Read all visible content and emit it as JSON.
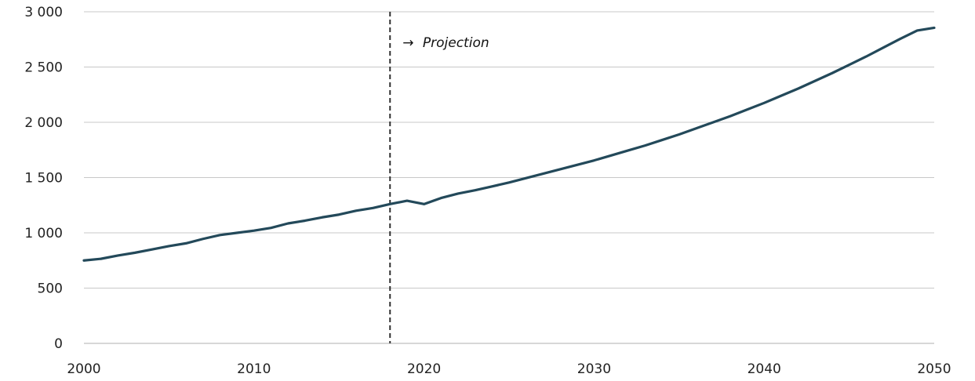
{
  "chart_data": {
    "type": "line",
    "title": "",
    "xlabel": "",
    "ylabel": "",
    "xlim": [
      2000,
      2050
    ],
    "ylim": [
      0,
      3000
    ],
    "x_ticks": [
      2000,
      2010,
      2020,
      2030,
      2040,
      2050
    ],
    "x_tick_labels": [
      "2000",
      "2010",
      "2020",
      "2030",
      "2040",
      "2050"
    ],
    "y_ticks": [
      0,
      500,
      1000,
      1500,
      2000,
      2500,
      3000
    ],
    "y_tick_labels": [
      "0",
      "500",
      "1 000",
      "1 500",
      "2 000",
      "2 500",
      "3 000"
    ],
    "grid": "horizontal",
    "legend": "none",
    "series": [
      {
        "color": "#23495a",
        "x": [
          2000,
          2001,
          2002,
          2003,
          2004,
          2005,
          2006,
          2007,
          2008,
          2009,
          2010,
          2011,
          2012,
          2013,
          2014,
          2015,
          2016,
          2017,
          2018,
          2019,
          2020,
          2021,
          2022,
          2023,
          2024,
          2025,
          2026,
          2027,
          2028,
          2029,
          2030,
          2031,
          2032,
          2033,
          2034,
          2035,
          2036,
          2037,
          2038,
          2039,
          2040,
          2041,
          2042,
          2043,
          2044,
          2045,
          2046,
          2047,
          2048,
          2049,
          2050
        ],
        "values": [
          750,
          765,
          795,
          820,
          850,
          880,
          905,
          945,
          980,
          1000,
          1020,
          1045,
          1085,
          1110,
          1140,
          1165,
          1200,
          1225,
          1260,
          1290,
          1260,
          1315,
          1355,
          1385,
          1420,
          1455,
          1495,
          1535,
          1575,
          1615,
          1655,
          1700,
          1745,
          1790,
          1840,
          1890,
          1945,
          2000,
          2055,
          2115,
          2175,
          2240,
          2305,
          2375,
          2445,
          2520,
          2595,
          2675,
          2755,
          2830,
          2855
        ]
      }
    ],
    "annotations": [
      {
        "type": "vertical-dashed-line",
        "x": 2018,
        "label_arrow": "→",
        "label": "Projection"
      }
    ]
  }
}
